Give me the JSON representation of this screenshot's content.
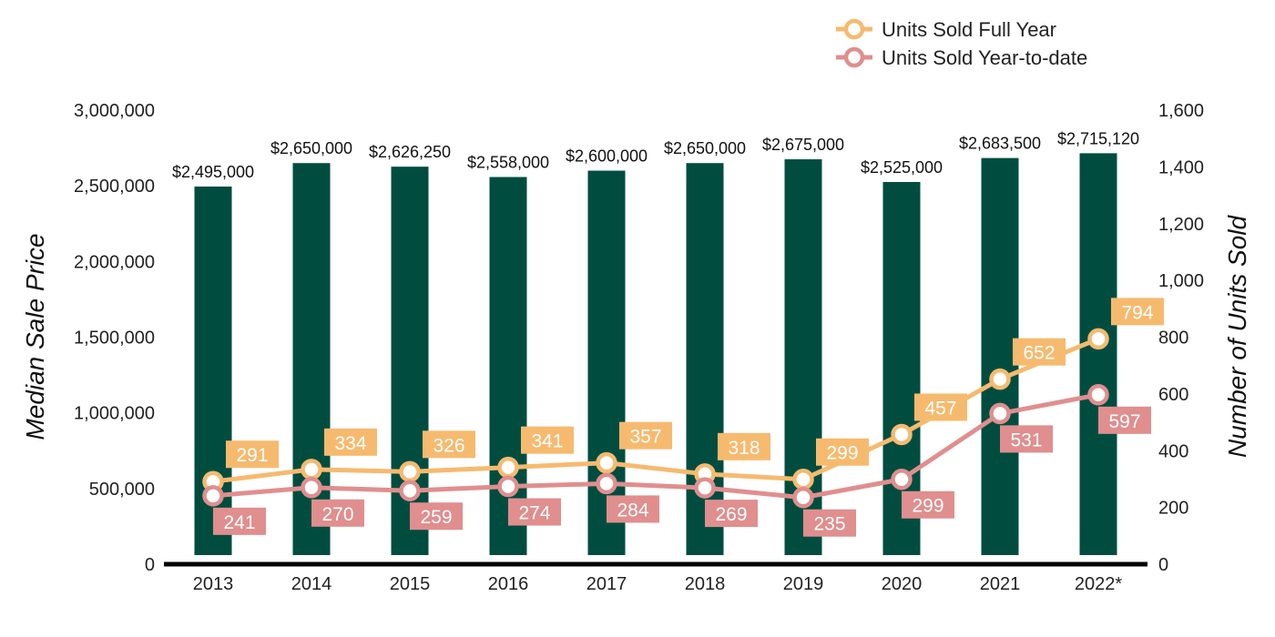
{
  "chart_data": {
    "type": "bar",
    "categories": [
      "2013",
      "2014",
      "2015",
      "2016",
      "2017",
      "2018",
      "2019",
      "2020",
      "2021",
      "2022*"
    ],
    "bars": {
      "name": "Median Sale Price",
      "values": [
        2495000,
        2650000,
        2626250,
        2558000,
        2600000,
        2650000,
        2675000,
        2525000,
        2683500,
        2715120
      ],
      "labels": [
        "$2,495,000",
        "$2,650,000",
        "$2,626,250",
        "$2,558,000",
        "$2,600,000",
        "$2,650,000",
        "$2,675,000",
        "$2,525,000",
        "$2,683,500",
        "$2,715,120"
      ],
      "color": "#004d40"
    },
    "series": [
      {
        "name": "Units Sold Full Year",
        "values": [
          291,
          334,
          326,
          341,
          357,
          318,
          299,
          457,
          652,
          794
        ],
        "labels": [
          "291",
          "334",
          "326",
          "341",
          "357",
          "318",
          "299",
          "457",
          "652",
          "794"
        ],
        "color": "#f6ba6f",
        "label_position": "above"
      },
      {
        "name": "Units Sold Year-to-date",
        "values": [
          241,
          270,
          259,
          274,
          284,
          269,
          235,
          299,
          531,
          597
        ],
        "labels": [
          "241",
          "270",
          "259",
          "274",
          "284",
          "269",
          "235",
          "299",
          "531",
          "597"
        ],
        "color": "#e08e8e",
        "label_position": "below"
      }
    ],
    "left_axis": {
      "title": "Median Sale Price",
      "range": [
        0,
        3000000
      ],
      "ticks": [
        0,
        500000,
        1000000,
        1500000,
        2000000,
        2500000,
        3000000
      ],
      "tick_labels": [
        "0",
        "500,000",
        "1,000,000",
        "1,500,000",
        "2,000,000",
        "2,500,000",
        "3,000,000"
      ]
    },
    "right_axis": {
      "title": "Number of Units Sold",
      "range": [
        0,
        1600
      ],
      "ticks": [
        0,
        200,
        400,
        600,
        800,
        1000,
        1200,
        1400,
        1600
      ],
      "tick_labels": [
        "0",
        "200",
        "400",
        "600",
        "800",
        "1,000",
        "1,200",
        "1,400",
        "1,600"
      ]
    },
    "grid": false,
    "legend": {
      "position": "top-right",
      "entries": [
        "Units Sold Full Year",
        "Units Sold Year-to-date"
      ]
    }
  }
}
